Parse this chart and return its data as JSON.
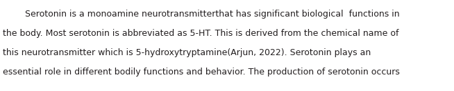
{
  "lines": [
    "        Serotonin is a monoamine neurotransmitterthat has significant biological  functions in",
    "the body. Most serotonin is abbreviated as 5-HT. This is derived from the chemical name of",
    "this neurotransmitter which is 5-hydroxytryptamine(Arjun, 2022). Serotonin plays an",
    "essential role in different bodily functions and behavior. The production of serotonin occurs"
  ],
  "font_size": 9.0,
  "font_family": "Times New Roman",
  "text_color": "#231f20",
  "background_color": "#ffffff",
  "fig_width": 6.54,
  "fig_height": 1.32,
  "dpi": 100
}
